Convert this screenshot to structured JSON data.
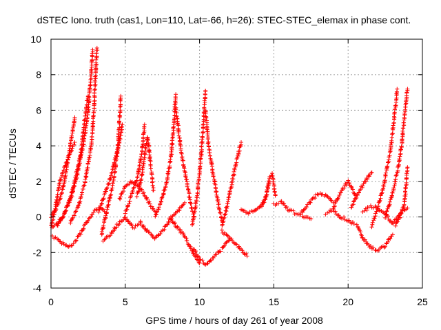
{
  "chart_data": {
    "type": "scatter",
    "title": "dSTEC Iono. truth (cas1, Lon=110, Lat=-66, h=26): STEC-STEC_elemax in phase cont.",
    "xlabel": "GPS time / hours of day 261 of year 2008",
    "ylabel": "dSTEC  / TECUs",
    "xlim": [
      0,
      25
    ],
    "ylim": [
      -4,
      10
    ],
    "x_ticks": [
      0,
      5,
      10,
      15,
      20,
      25
    ],
    "y_ticks": [
      -4,
      -2,
      0,
      2,
      4,
      6,
      8,
      10
    ],
    "x_tick_labels": [
      "0",
      "5",
      "10",
      "15",
      "20",
      "25"
    ],
    "y_tick_labels": [
      "-4",
      "-2",
      "0",
      "2",
      "4",
      "6",
      "8",
      "10"
    ],
    "grid": true,
    "marker": "+",
    "color": "#ff0000",
    "series": [
      {
        "x": [
          0.0,
          0.3,
          0.6,
          0.9,
          1.1,
          1.4,
          1.6
        ],
        "y": [
          0.0,
          0.4,
          1.0,
          2.0,
          3.0,
          4.5,
          5.6
        ]
      },
      {
        "x": [
          0.0,
          0.4,
          0.8,
          1.2,
          1.6,
          2.0,
          2.2,
          2.4,
          2.5
        ],
        "y": [
          -0.6,
          -0.4,
          0.0,
          0.8,
          2.0,
          3.5,
          5.0,
          6.3,
          6.8
        ]
      },
      {
        "x": [
          0.4,
          0.9,
          1.4,
          1.8,
          2.2,
          2.5,
          2.7,
          2.8
        ],
        "y": [
          -0.5,
          0.2,
          1.2,
          2.5,
          4.2,
          6.0,
          8.0,
          9.4
        ]
      },
      {
        "x": [
          1.3,
          1.8,
          2.3,
          2.7,
          2.9,
          3.0,
          3.1
        ],
        "y": [
          -0.3,
          0.5,
          2.0,
          4.0,
          6.0,
          8.0,
          9.5
        ]
      },
      {
        "x": [
          0.0,
          0.4,
          0.8,
          1.2,
          1.6,
          2.0,
          2.4,
          2.8,
          3.2,
          3.6
        ],
        "y": [
          -1.1,
          -1.2,
          -1.5,
          -1.7,
          -1.4,
          -0.9,
          -0.3,
          0.2,
          0.5,
          0.3
        ]
      },
      {
        "x": [
          0.0,
          0.3,
          0.6,
          1.0,
          1.3,
          1.6
        ],
        "y": [
          -0.5,
          0.5,
          2.0,
          3.0,
          3.6,
          4.2
        ]
      },
      {
        "x": [
          3.2,
          3.6,
          4.0,
          4.3,
          4.6,
          4.8
        ],
        "y": [
          0.3,
          1.2,
          2.2,
          3.2,
          4.2,
          5.2
        ]
      },
      {
        "x": [
          3.4,
          3.8,
          4.2,
          4.5,
          4.7
        ],
        "y": [
          -1.0,
          0.5,
          2.0,
          3.8,
          6.8
        ]
      },
      {
        "x": [
          3.5,
          4.0,
          4.5,
          5.0,
          5.5,
          6.0
        ],
        "y": [
          -1.3,
          -1.0,
          -0.4,
          0.0,
          -0.6,
          -0.4
        ]
      },
      {
        "x": [
          5.0,
          5.4,
          5.8,
          6.1,
          6.3
        ],
        "y": [
          0.2,
          1.2,
          2.2,
          3.5,
          5.2
        ]
      },
      {
        "x": [
          5.8,
          6.1,
          6.3,
          6.5,
          6.7,
          6.9
        ],
        "y": [
          1.2,
          2.2,
          3.5,
          4.5,
          3.0,
          1.5
        ]
      },
      {
        "x": [
          4.6,
          5.0,
          5.4,
          5.8,
          6.2,
          6.6,
          7.0
        ],
        "y": [
          1.0,
          1.7,
          2.0,
          1.8,
          1.4,
          0.8,
          0.3
        ]
      },
      {
        "x": [
          6.0,
          6.5,
          7.0,
          7.5,
          8.0,
          8.5,
          9.0
        ],
        "y": [
          -0.3,
          -0.8,
          -1.2,
          -0.8,
          -0.2,
          0.3,
          0.8
        ]
      },
      {
        "x": [
          7.0,
          7.4,
          7.8,
          8.1,
          8.3,
          8.4
        ],
        "y": [
          0.0,
          0.8,
          2.0,
          3.5,
          5.5,
          6.9
        ]
      },
      {
        "x": [
          8.4,
          8.7,
          9.0,
          9.3,
          9.6
        ],
        "y": [
          6.2,
          4.0,
          2.6,
          1.2,
          0.0
        ]
      },
      {
        "x": [
          8.0,
          8.5,
          9.0,
          9.3,
          9.6,
          10.0
        ],
        "y": [
          0.0,
          -0.6,
          -1.1,
          -1.6,
          -2.1,
          -2.6
        ]
      },
      {
        "x": [
          9.5,
          9.8,
          10.0,
          10.2,
          10.4
        ],
        "y": [
          -0.5,
          1.0,
          2.5,
          4.5,
          7.1
        ]
      },
      {
        "x": [
          10.4,
          10.6,
          10.9,
          11.2,
          11.5
        ],
        "y": [
          6.0,
          4.0,
          2.5,
          1.0,
          -0.2
        ]
      },
      {
        "x": [
          9.6,
          10.0,
          10.5,
          11.0,
          11.5,
          12.0
        ],
        "y": [
          -1.8,
          -2.4,
          -2.7,
          -2.2,
          -1.8,
          -1.3
        ]
      },
      {
        "x": [
          11.5,
          11.9,
          12.2,
          12.5,
          12.8
        ],
        "y": [
          -0.5,
          0.8,
          2.0,
          3.2,
          4.2
        ]
      },
      {
        "x": [
          11.5,
          12.0,
          12.5,
          13.0,
          13.2
        ],
        "y": [
          -0.8,
          -1.2,
          -1.6,
          -2.0,
          -2.2
        ]
      },
      {
        "x": [
          12.8,
          13.2,
          13.6,
          14.0,
          14.4,
          14.7
        ],
        "y": [
          0.4,
          0.2,
          0.3,
          0.5,
          1.0,
          2.0
        ]
      },
      {
        "x": [
          14.2,
          14.5,
          14.7,
          14.9,
          15.1
        ],
        "y": [
          0.6,
          1.2,
          2.2,
          2.4,
          1.2
        ]
      },
      {
        "x": [
          15.0,
          15.5,
          16.0,
          16.5,
          17.0,
          17.5
        ],
        "y": [
          0.7,
          0.9,
          0.4,
          0.2,
          0.0,
          -0.1
        ]
      },
      {
        "x": [
          16.8,
          17.2,
          17.6,
          18.0,
          18.5,
          19.0
        ],
        "y": [
          0.2,
          0.6,
          1.0,
          1.3,
          1.2,
          0.8
        ]
      },
      {
        "x": [
          18.5,
          19.0,
          19.5,
          20.0,
          20.4
        ],
        "y": [
          0.2,
          0.4,
          0.0,
          -0.2,
          -0.4
        ]
      },
      {
        "x": [
          19.0,
          19.5,
          20.0,
          20.5
        ],
        "y": [
          0.5,
          1.4,
          2.0,
          1.2
        ]
      },
      {
        "x": [
          20.2,
          20.6,
          21.0,
          21.3,
          21.6
        ],
        "y": [
          0.5,
          1.2,
          1.8,
          2.2,
          2.5
        ]
      },
      {
        "x": [
          20.6,
          21.0,
          21.5,
          22.0,
          22.5,
          23.0
        ],
        "y": [
          -0.5,
          -1.2,
          -1.7,
          -1.9,
          -1.6,
          -1.0
        ]
      },
      {
        "x": [
          21.6,
          22.0,
          22.4,
          22.8,
          23.1,
          23.3
        ],
        "y": [
          -0.5,
          0.5,
          1.8,
          3.5,
          5.5,
          7.2
        ]
      },
      {
        "x": [
          22.5,
          22.9,
          23.3,
          23.6,
          23.8,
          24.0
        ],
        "y": [
          0.0,
          1.0,
          2.5,
          4.0,
          5.8,
          7.2
        ]
      },
      {
        "x": [
          23.2,
          23.5,
          23.8,
          24.0
        ],
        "y": [
          -0.5,
          0.0,
          0.8,
          2.8
        ]
      },
      {
        "x": [
          21.0,
          21.5,
          22.0,
          22.5,
          23.0,
          23.5,
          24.0
        ],
        "y": [
          0.3,
          0.6,
          0.5,
          0.2,
          -0.4,
          0.2,
          0.5
        ]
      }
    ]
  }
}
